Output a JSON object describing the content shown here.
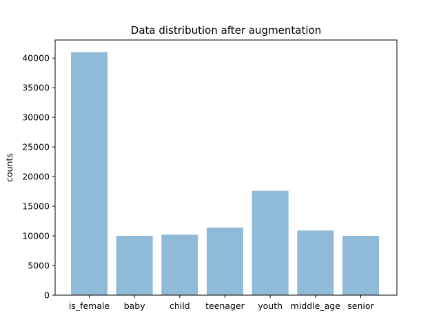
{
  "chart_data": {
    "type": "bar",
    "title": "Data distribution after augmentation",
    "xlabel": "",
    "ylabel": "counts",
    "categories": [
      "is_female",
      "baby",
      "child",
      "teenager",
      "youth",
      "middle_age",
      "senior"
    ],
    "values": [
      41000,
      10000,
      10200,
      11400,
      17600,
      10900,
      10000
    ],
    "ylim": [
      0,
      43050
    ],
    "yticks": [
      0,
      5000,
      10000,
      15000,
      20000,
      25000,
      30000,
      35000,
      40000
    ],
    "bar_color": "#8fbbd9",
    "grid": false
  }
}
